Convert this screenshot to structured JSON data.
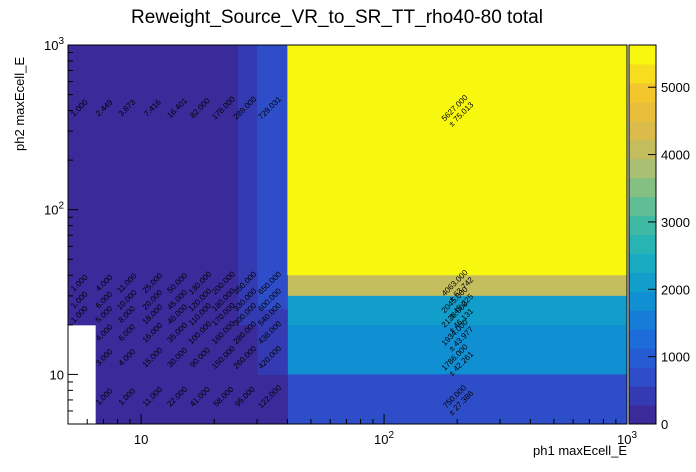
{
  "chart_data": {
    "type": "heatmap",
    "title": "Reweight_Source_VR_to_SR_TT_rho40-80 total",
    "xlabel": "ph1 maxEcell_E",
    "ylabel": "ph2 maxEcell_E",
    "xscale": "log",
    "yscale": "log",
    "xlim": [
      5,
      1000
    ],
    "ylim": [
      5,
      1000
    ],
    "x_ticks": [
      {
        "value": 10,
        "base": "10",
        "exp": ""
      },
      {
        "value": 100,
        "base": "10",
        "exp": "2"
      },
      {
        "value": 1000,
        "base": "10",
        "exp": "3"
      }
    ],
    "y_ticks": [
      {
        "value": 10,
        "base": "10",
        "exp": ""
      },
      {
        "value": 100,
        "base": "10",
        "exp": "2"
      },
      {
        "value": 1000,
        "base": "10",
        "exp": "3"
      }
    ],
    "x_edges": [
      5,
      6.5,
      8,
      10,
      13,
      16,
      20,
      25,
      30,
      40,
      1000
    ],
    "y_edges": [
      5,
      10,
      15,
      20,
      25,
      30,
      40,
      1000
    ],
    "z_range": [
      0,
      5627
    ],
    "palette_stops": [
      "#3a2a9a",
      "#2f4bc8",
      "#1f68db",
      "#0f8ad6",
      "#14a7c6",
      "#2eb8ac",
      "#6cc08c",
      "#b4bf6c",
      "#e0ba45",
      "#f5c72c",
      "#f8f80e"
    ],
    "colorbar_ticks": [
      {
        "value": 0,
        "label": "0"
      },
      {
        "value": 1000,
        "label": "1000"
      },
      {
        "value": 2000,
        "label": "2000"
      },
      {
        "value": 3000,
        "label": "3000"
      },
      {
        "value": 4000,
        "label": "4000"
      },
      {
        "value": 5000,
        "label": "5000"
      }
    ],
    "cells": [
      {
        "ix": 0,
        "iy": 6,
        "value": 1.0,
        "error": "",
        "value_label": "1.000",
        "error_label": ""
      },
      {
        "ix": 1,
        "iy": 6,
        "value": 2.449,
        "error": "",
        "value_label": "2.449",
        "error_label": ""
      },
      {
        "ix": 2,
        "iy": 6,
        "value": 3.873,
        "error": "",
        "value_label": "3.873",
        "error_label": ""
      },
      {
        "ix": 3,
        "iy": 6,
        "value": 7.416,
        "error": "",
        "value_label": "7.416",
        "error_label": ""
      },
      {
        "ix": 4,
        "iy": 6,
        "value": 16.401,
        "error": "",
        "value_label": "16.401",
        "error_label": ""
      },
      {
        "ix": 5,
        "iy": 6,
        "value": 82.0,
        "error": "",
        "value_label": "82.000",
        "error_label": ""
      },
      {
        "ix": 6,
        "iy": 6,
        "value": 178.0,
        "error": "",
        "value_label": "178.000",
        "error_label": ""
      },
      {
        "ix": 7,
        "iy": 6,
        "value": 289.0,
        "error": "",
        "value_label": "289.000",
        "error_label": ""
      },
      {
        "ix": 8,
        "iy": 6,
        "value": 729.031,
        "error": "",
        "value_label": "729.031",
        "error_label": ""
      },
      {
        "ix": 9,
        "iy": 6,
        "value": 5627.0,
        "error": 75.013,
        "value_label": "5627.000",
        "error_label": "± 75.013"
      },
      {
        "ix": 9,
        "iy": 5,
        "value": 4063.0,
        "error": 63.742,
        "value_label": "4063.000",
        "error_label": "± 63.742"
      },
      {
        "ix": 9,
        "iy": 4,
        "value": 2045.0,
        "error": 45.225,
        "value_label": "2045.000",
        "error_label": "± 45.225"
      },
      {
        "ix": 9,
        "iy": 3,
        "value": 2128.0,
        "error": 46.131,
        "value_label": "2128.000",
        "error_label": "± 46.131"
      },
      {
        "ix": 9,
        "iy": 2,
        "value": 1934.0,
        "error": 43.977,
        "value_label": "1934.000",
        "error_label": "± 43.977"
      },
      {
        "ix": 9,
        "iy": 1,
        "value": 1786.0,
        "error": 42.261,
        "value_label": "1786.000",
        "error_label": "± 42.261"
      },
      {
        "ix": 9,
        "iy": 0,
        "value": 750.0,
        "error": 27.386,
        "value_label": "750.000",
        "error_label": "± 27.386"
      },
      {
        "ix": 8,
        "iy": 0,
        "value": 122.0,
        "error": 11.045,
        "value_label": "122.000",
        "error_label": ""
      },
      {
        "ix": 8,
        "iy": 1,
        "value": 420.0,
        "error": 20.494,
        "value_label": "420.000",
        "error_label": ""
      },
      {
        "ix": 8,
        "iy": 2,
        "value": 438.0,
        "error": 20.928,
        "value_label": "438.000",
        "error_label": ""
      },
      {
        "ix": 8,
        "iy": 3,
        "value": 540.0,
        "error": 23.238,
        "value_label": "540.000",
        "error_label": ""
      },
      {
        "ix": 8,
        "iy": 4,
        "value": 600.0,
        "error": 24.495,
        "value_label": "600.000",
        "error_label": ""
      },
      {
        "ix": 8,
        "iy": 5,
        "value": 650.0,
        "error": 25.495,
        "value_label": "650.000",
        "error_label": ""
      },
      {
        "ix": 7,
        "iy": 0,
        "value": 95.0,
        "error": 9.747,
        "value_label": "95.000",
        "error_label": ""
      },
      {
        "ix": 7,
        "iy": 1,
        "value": 260.0,
        "error": 16.125,
        "value_label": "260.000",
        "error_label": ""
      },
      {
        "ix": 7,
        "iy": 2,
        "value": 280.0,
        "error": 16.733,
        "value_label": "280.000",
        "error_label": ""
      },
      {
        "ix": 7,
        "iy": 3,
        "value": 300.0,
        "error": 17.321,
        "value_label": "300.000",
        "error_label": ""
      },
      {
        "ix": 7,
        "iy": 4,
        "value": 330.0,
        "error": 18.166,
        "value_label": "330.000",
        "error_label": ""
      },
      {
        "ix": 7,
        "iy": 5,
        "value": 350.0,
        "error": 18.708,
        "value_label": "350.000",
        "error_label": ""
      },
      {
        "ix": 6,
        "iy": 0,
        "value": 58.0,
        "error": 7.616,
        "value_label": "58.000",
        "error_label": ""
      },
      {
        "ix": 6,
        "iy": 1,
        "value": 150.0,
        "error": 12.247,
        "value_label": "150.000",
        "error_label": ""
      },
      {
        "ix": 6,
        "iy": 2,
        "value": 160.0,
        "error": 12.649,
        "value_label": "160.000",
        "error_label": ""
      },
      {
        "ix": 6,
        "iy": 3,
        "value": 170.0,
        "error": 13.038,
        "value_label": "170.000",
        "error_label": ""
      },
      {
        "ix": 6,
        "iy": 4,
        "value": 180.0,
        "error": 13.416,
        "value_label": "180.000",
        "error_label": ""
      },
      {
        "ix": 6,
        "iy": 5,
        "value": 200.0,
        "error": 14.142,
        "value_label": "200.000",
        "error_label": ""
      },
      {
        "ix": 5,
        "iy": 0,
        "value": 41.0,
        "error": 6.403,
        "value_label": "41.000",
        "error_label": ""
      },
      {
        "ix": 5,
        "iy": 1,
        "value": 90.0,
        "error": 9.487,
        "value_label": "90.000",
        "error_label": ""
      },
      {
        "ix": 5,
        "iy": 2,
        "value": 100.0,
        "error": 10.0,
        "value_label": "100.000",
        "error_label": ""
      },
      {
        "ix": 5,
        "iy": 3,
        "value": 110.0,
        "error": 10.488,
        "value_label": "110.000",
        "error_label": ""
      },
      {
        "ix": 5,
        "iy": 4,
        "value": 120.0,
        "error": 10.954,
        "value_label": "120.000",
        "error_label": ""
      },
      {
        "ix": 5,
        "iy": 5,
        "value": 130.0,
        "error": 11.402,
        "value_label": "130.000",
        "error_label": ""
      },
      {
        "ix": 4,
        "iy": 0,
        "value": 22.0,
        "error": 4.69,
        "value_label": "22.000",
        "error_label": ""
      },
      {
        "ix": 4,
        "iy": 1,
        "value": 30.0,
        "error": 5.477,
        "value_label": "30.000",
        "error_label": ""
      },
      {
        "ix": 4,
        "iy": 2,
        "value": 35.0,
        "error": 5.916,
        "value_label": "35.000",
        "error_label": ""
      },
      {
        "ix": 4,
        "iy": 3,
        "value": 40.0,
        "error": 6.325,
        "value_label": "40.000",
        "error_label": ""
      },
      {
        "ix": 4,
        "iy": 4,
        "value": 45.0,
        "error": 6.708,
        "value_label": "45.000",
        "error_label": ""
      },
      {
        "ix": 4,
        "iy": 5,
        "value": 50.0,
        "error": 7.071,
        "value_label": "50.000",
        "error_label": ""
      },
      {
        "ix": 3,
        "iy": 0,
        "value": 11.0,
        "error": 3.317,
        "value_label": "11.000",
        "error_label": ""
      },
      {
        "ix": 3,
        "iy": 1,
        "value": 15.0,
        "error": 3.873,
        "value_label": "15.000",
        "error_label": ""
      },
      {
        "ix": 3,
        "iy": 2,
        "value": 16.0,
        "error": 4.0,
        "value_label": "16.000",
        "error_label": ""
      },
      {
        "ix": 3,
        "iy": 3,
        "value": 18.0,
        "error": 4.243,
        "value_label": "18.000",
        "error_label": ""
      },
      {
        "ix": 3,
        "iy": 4,
        "value": 20.0,
        "error": 4.472,
        "value_label": "20.000",
        "error_label": ""
      },
      {
        "ix": 3,
        "iy": 5,
        "value": 25.0,
        "error": 5.0,
        "value_label": "25.000",
        "error_label": ""
      },
      {
        "ix": 2,
        "iy": 0,
        "value": 1.0,
        "error": 1.0,
        "value_label": "1.000",
        "error_label": ""
      },
      {
        "ix": 2,
        "iy": 1,
        "value": 4.0,
        "error": 2.0,
        "value_label": "4.000",
        "error_label": ""
      },
      {
        "ix": 2,
        "iy": 2,
        "value": 6.0,
        "error": 2.449,
        "value_label": "6.000",
        "error_label": ""
      },
      {
        "ix": 2,
        "iy": 3,
        "value": 8.0,
        "error": 2.828,
        "value_label": "8.000",
        "error_label": ""
      },
      {
        "ix": 2,
        "iy": 4,
        "value": 10.0,
        "error": 3.162,
        "value_label": "10.000",
        "error_label": ""
      },
      {
        "ix": 2,
        "iy": 5,
        "value": 11.0,
        "error": 3.317,
        "value_label": "11.000",
        "error_label": ""
      },
      {
        "ix": 1,
        "iy": 0,
        "value": 1.0,
        "error": 1.0,
        "value_label": "1.000",
        "error_label": ""
      },
      {
        "ix": 1,
        "iy": 1,
        "value": 3.0,
        "error": 1.732,
        "value_label": "3.000",
        "error_label": ""
      },
      {
        "ix": 1,
        "iy": 2,
        "value": 4.0,
        "error": 2.0,
        "value_label": "4.000",
        "error_label": ""
      },
      {
        "ix": 1,
        "iy": 3,
        "value": 5.0,
        "error": 2.236,
        "value_label": "5.000",
        "error_label": ""
      },
      {
        "ix": 1,
        "iy": 4,
        "value": 6.0,
        "error": 2.449,
        "value_label": "6.000",
        "error_label": ""
      },
      {
        "ix": 1,
        "iy": 5,
        "value": 4.0,
        "error": 2.0,
        "value_label": "4.000",
        "error_label": ""
      },
      {
        "ix": 0,
        "iy": 3,
        "value": 1.0,
        "error": 1.0,
        "value_label": "1.000",
        "error_label": ""
      },
      {
        "ix": 0,
        "iy": 4,
        "value": 1.0,
        "error": 1.0,
        "value_label": "1.000",
        "error_label": ""
      },
      {
        "ix": 0,
        "iy": 5,
        "value": 1.0,
        "error": 1.0,
        "value_label": "1.000",
        "error_label": ""
      }
    ]
  }
}
